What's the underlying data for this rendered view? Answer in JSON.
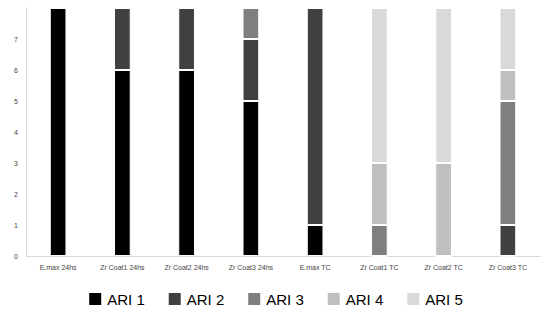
{
  "chart_data": {
    "type": "bar",
    "stacked": true,
    "legend": "bottom",
    "grid": false,
    "categories": [
      "E.max 24hs",
      "Zr Coat1 24hs",
      "Zr Coat2 24hs",
      "Zr Coat3 24hs",
      "E.max TC",
      "Zr Coat1 TC",
      "Zr Coat2 TC",
      "Zr Coat3 TC"
    ],
    "series": [
      {
        "name": "ARI 1",
        "color": "#000000",
        "values": [
          8,
          6,
          6,
          5,
          1,
          0,
          0,
          0
        ]
      },
      {
        "name": "ARI 2",
        "color": "#404040",
        "values": [
          0,
          2,
          2,
          2,
          7,
          0,
          0,
          1
        ]
      },
      {
        "name": "ARI 3",
        "color": "#7f7f7f",
        "values": [
          0,
          0,
          0,
          1,
          0,
          1,
          0,
          4
        ]
      },
      {
        "name": "ARI 4",
        "color": "#bfbfbf",
        "values": [
          0,
          0,
          0,
          0,
          0,
          2,
          3,
          1
        ]
      },
      {
        "name": "ARI 5",
        "color": "#d9d9d9",
        "values": [
          0,
          0,
          0,
          0,
          0,
          5,
          5,
          2
        ]
      }
    ],
    "ylim": [
      0,
      8
    ],
    "yticks": [
      0,
      1,
      2,
      3,
      4,
      5,
      6,
      7
    ]
  }
}
